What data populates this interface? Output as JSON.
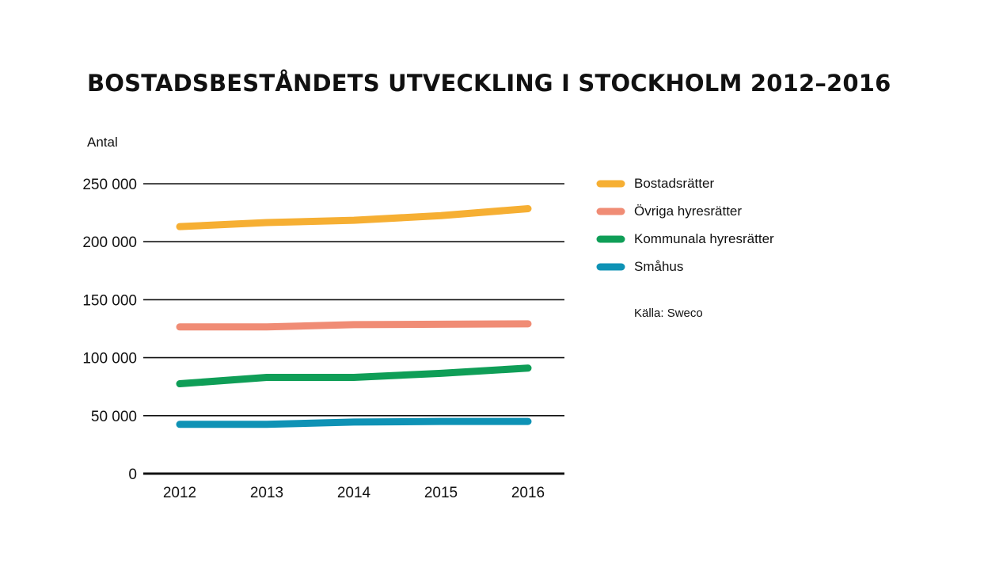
{
  "chart_data": {
    "type": "line",
    "title": "BOSTADSBESTÅNDETS UTVECKLING I STOCKHOLM 2012–2016",
    "ylabel": "Antal",
    "xlabel": "",
    "categories": [
      "2012",
      "2013",
      "2014",
      "2015",
      "2016"
    ],
    "ylim": [
      0,
      250000
    ],
    "yticks": [
      0,
      50000,
      100000,
      150000,
      200000,
      250000
    ],
    "ytick_labels": [
      "0",
      "50 000",
      "100 000",
      "150 000",
      "200 000",
      "250 000"
    ],
    "grid": true,
    "legend_position": "right",
    "series": [
      {
        "name": "Bostadsrätter",
        "color": "#F6AF33",
        "values": [
          213000,
          216500,
          218500,
          222500,
          228500
        ]
      },
      {
        "name": "Övriga hyresrätter",
        "color": "#F08C75",
        "values": [
          126500,
          126500,
          128500,
          128800,
          129200
        ]
      },
      {
        "name": "Kommunala hyresrätter",
        "color": "#0F9E57",
        "values": [
          77500,
          83000,
          83000,
          86500,
          91000
        ]
      },
      {
        "name": "Småhus",
        "color": "#0E92B5",
        "values": [
          42500,
          42500,
          44500,
          45000,
          45000
        ]
      }
    ],
    "source": "Källa: Sweco"
  }
}
